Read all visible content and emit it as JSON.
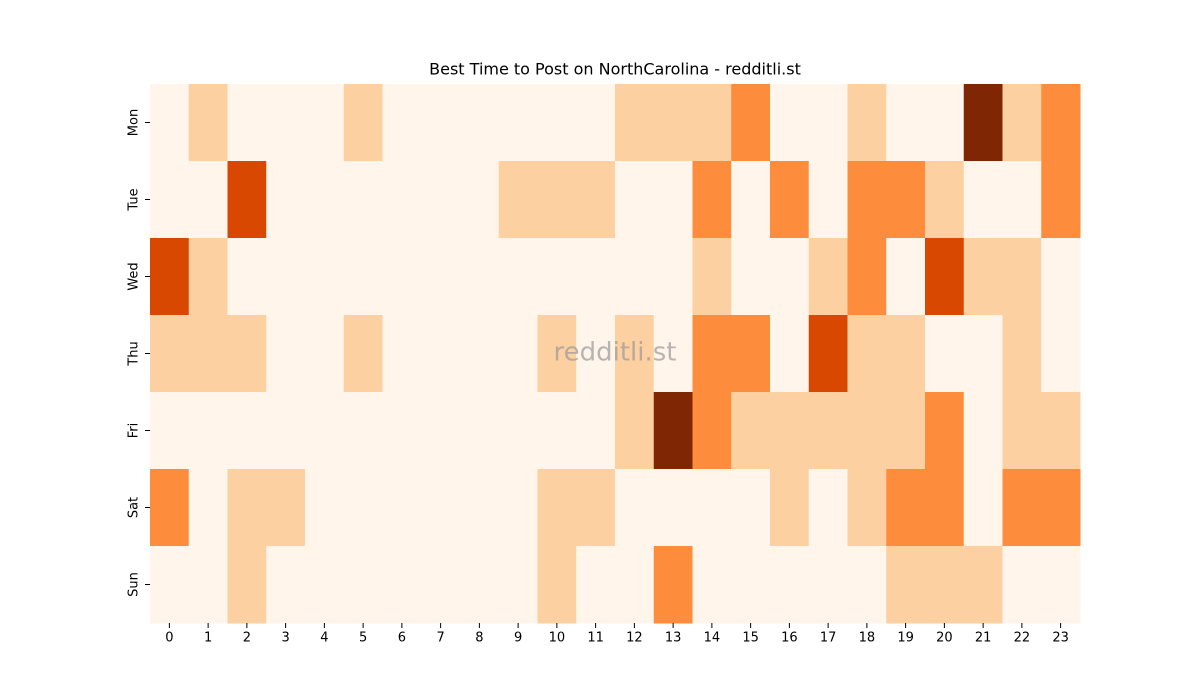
{
  "chart_data": {
    "type": "heatmap",
    "title": "Best Time to Post on NorthCarolina - redditli.st",
    "watermark": "redditli.st",
    "x_categories": [
      "0",
      "1",
      "2",
      "3",
      "4",
      "5",
      "6",
      "7",
      "8",
      "9",
      "10",
      "11",
      "12",
      "13",
      "14",
      "15",
      "16",
      "17",
      "18",
      "19",
      "20",
      "21",
      "22",
      "23"
    ],
    "y_categories": [
      "Mon",
      "Tue",
      "Wed",
      "Thu",
      "Fri",
      "Sat",
      "Sun"
    ],
    "values": [
      [
        0,
        1,
        0,
        0,
        0,
        1,
        0,
        0,
        0,
        0,
        0,
        0,
        1,
        1,
        1,
        2,
        0,
        0,
        1,
        0,
        0,
        4,
        1,
        2
      ],
      [
        0,
        0,
        3,
        0,
        0,
        0,
        0,
        0,
        0,
        1,
        1,
        1,
        0,
        0,
        2,
        0,
        2,
        0,
        2,
        2,
        1,
        0,
        0,
        2
      ],
      [
        3,
        1,
        0,
        0,
        0,
        0,
        0,
        0,
        0,
        0,
        0,
        0,
        0,
        0,
        1,
        0,
        0,
        1,
        2,
        0,
        3,
        1,
        1,
        0
      ],
      [
        1,
        1,
        1,
        0,
        0,
        1,
        0,
        0,
        0,
        0,
        1,
        0,
        1,
        0,
        2,
        2,
        0,
        3,
        1,
        1,
        0,
        0,
        1,
        0
      ],
      [
        0,
        0,
        0,
        0,
        0,
        0,
        0,
        0,
        0,
        0,
        0,
        0,
        1,
        4,
        2,
        1,
        1,
        1,
        1,
        1,
        2,
        0,
        1,
        1
      ],
      [
        2,
        0,
        1,
        1,
        0,
        0,
        0,
        0,
        0,
        0,
        1,
        1,
        0,
        0,
        0,
        0,
        1,
        0,
        1,
        2,
        2,
        0,
        2,
        2
      ],
      [
        0,
        0,
        1,
        0,
        0,
        0,
        0,
        0,
        0,
        0,
        1,
        0,
        0,
        2,
        0,
        0,
        0,
        0,
        0,
        1,
        1,
        1,
        0,
        0
      ]
    ],
    "palette": [
      "#fff5eb",
      "#fdd0a2",
      "#fd8d3c",
      "#d94801",
      "#7f2704"
    ]
  }
}
